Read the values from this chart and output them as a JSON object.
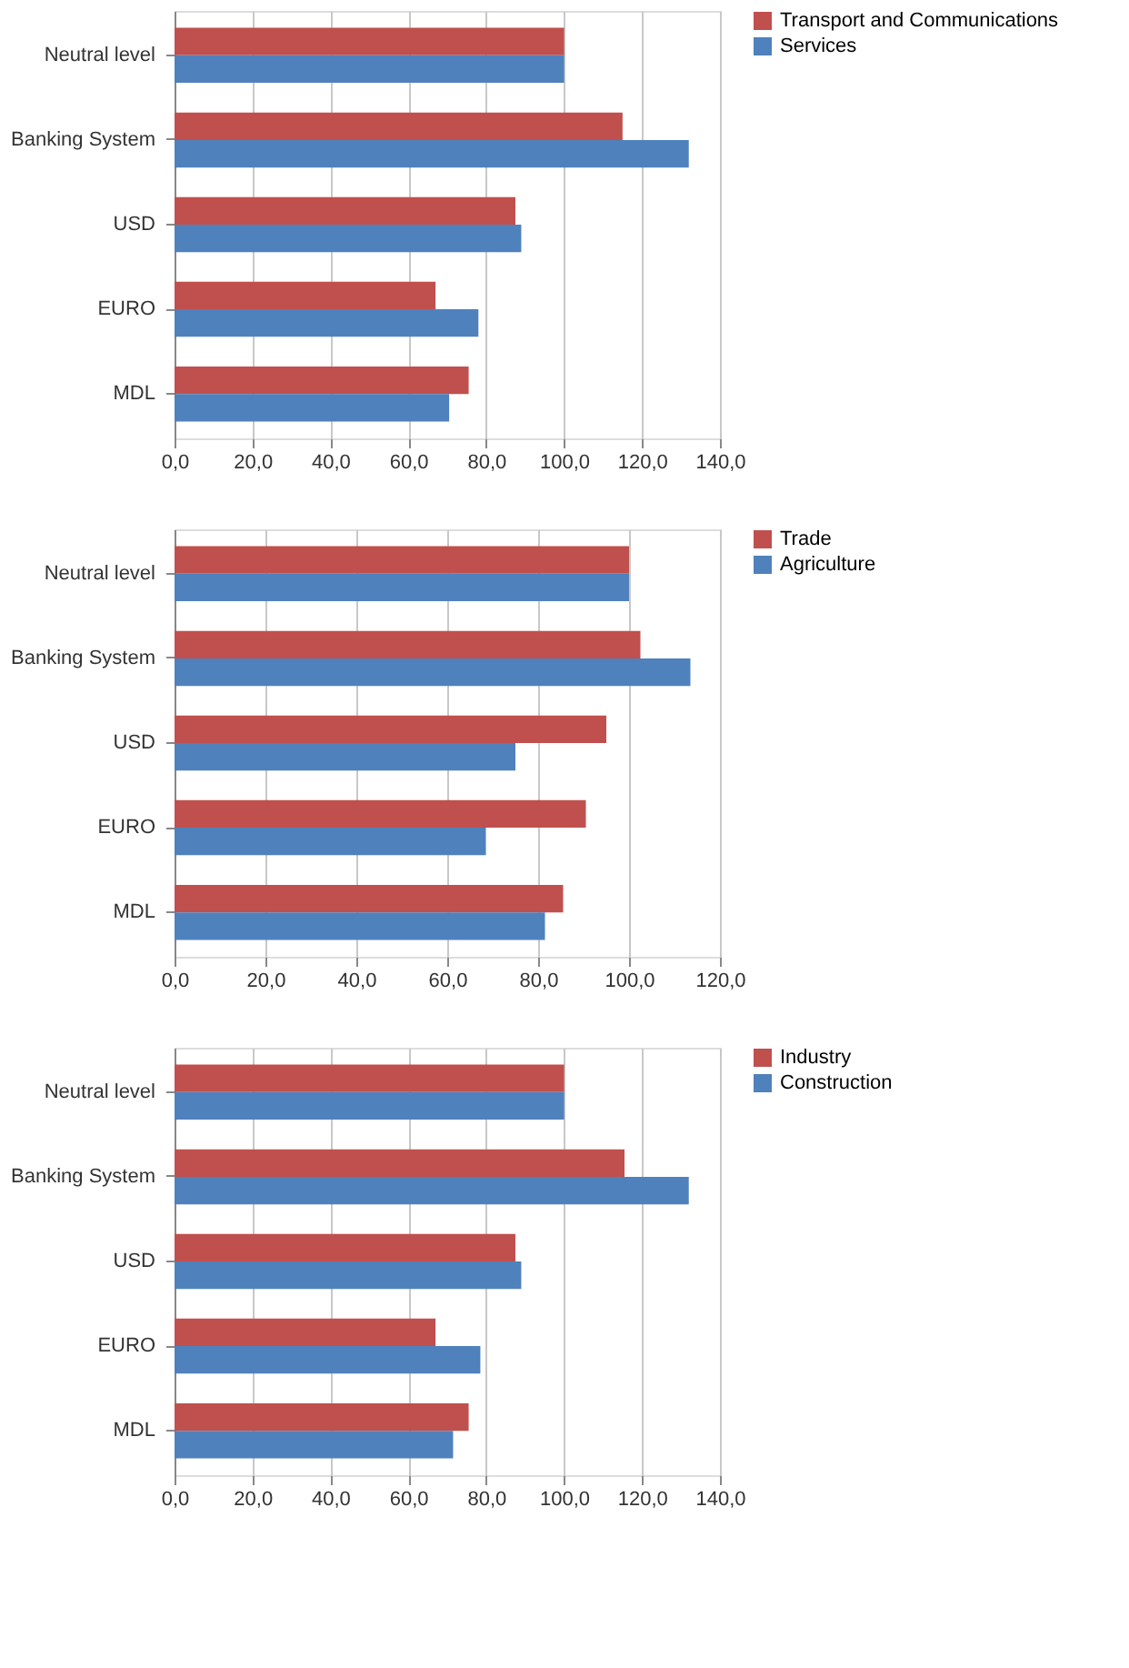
{
  "chart_data": [
    {
      "type": "bar",
      "orientation": "horizontal",
      "categories": [
        "Neutral level",
        "Banking System",
        "USD",
        "EURO",
        "MDL"
      ],
      "series": [
        {
          "name": "Transport and Communications",
          "color": "#c0504d",
          "values": [
            100,
            115,
            87.5,
            67,
            75.5
          ]
        },
        {
          "name": "Services",
          "color": "#4f81bd",
          "values": [
            100,
            132,
            89,
            78,
            70.5
          ]
        }
      ],
      "xlim": [
        0,
        140
      ],
      "xticks": [
        {
          "value": 0,
          "label": "0,0"
        },
        {
          "value": 20,
          "label": "20,0"
        },
        {
          "value": 40,
          "label": "40,0"
        },
        {
          "value": 60,
          "label": "60,0"
        },
        {
          "value": 80,
          "label": "80,0"
        },
        {
          "value": 100,
          "label": "100,0"
        },
        {
          "value": 120,
          "label": "120,0"
        },
        {
          "value": 140,
          "label": "140,0"
        }
      ],
      "grid": "x",
      "legend": "right"
    },
    {
      "type": "bar",
      "orientation": "horizontal",
      "categories": [
        "Neutral level",
        "Banking System",
        "USD",
        "EURO",
        "MDL"
      ],
      "series": [
        {
          "name": "Trade",
          "color": "#c0504d",
          "values": [
            100,
            102.5,
            95,
            90.5,
            85.5
          ]
        },
        {
          "name": "Agriculture",
          "color": "#4f81bd",
          "values": [
            100,
            113.5,
            75,
            68.5,
            81.5
          ]
        }
      ],
      "xlim": [
        0,
        120
      ],
      "xticks": [
        {
          "value": 0,
          "label": "0,0"
        },
        {
          "value": 20,
          "label": "20,0"
        },
        {
          "value": 40,
          "label": "40,0"
        },
        {
          "value": 60,
          "label": "60,0"
        },
        {
          "value": 80,
          "label": "80,0"
        },
        {
          "value": 100,
          "label": "100,0"
        },
        {
          "value": 120,
          "label": "120,0"
        }
      ],
      "grid": "x",
      "legend": "right"
    },
    {
      "type": "bar",
      "orientation": "horizontal",
      "categories": [
        "Neutral level",
        "Banking System",
        "USD",
        "EURO",
        "MDL"
      ],
      "series": [
        {
          "name": "Industry",
          "color": "#c0504d",
          "values": [
            100,
            115.5,
            87.5,
            67,
            75.5
          ]
        },
        {
          "name": "Construction",
          "color": "#4f81bd",
          "values": [
            100,
            132,
            89,
            78.5,
            71.5
          ]
        }
      ],
      "xlim": [
        0,
        140
      ],
      "xticks": [
        {
          "value": 0,
          "label": "0,0"
        },
        {
          "value": 20,
          "label": "20,0"
        },
        {
          "value": 40,
          "label": "40,0"
        },
        {
          "value": 60,
          "label": "60,0"
        },
        {
          "value": 80,
          "label": "80,0"
        },
        {
          "value": 100,
          "label": "100,0"
        },
        {
          "value": 120,
          "label": "120,0"
        },
        {
          "value": 140,
          "label": "140,0"
        }
      ],
      "grid": "x",
      "legend": "right"
    }
  ]
}
